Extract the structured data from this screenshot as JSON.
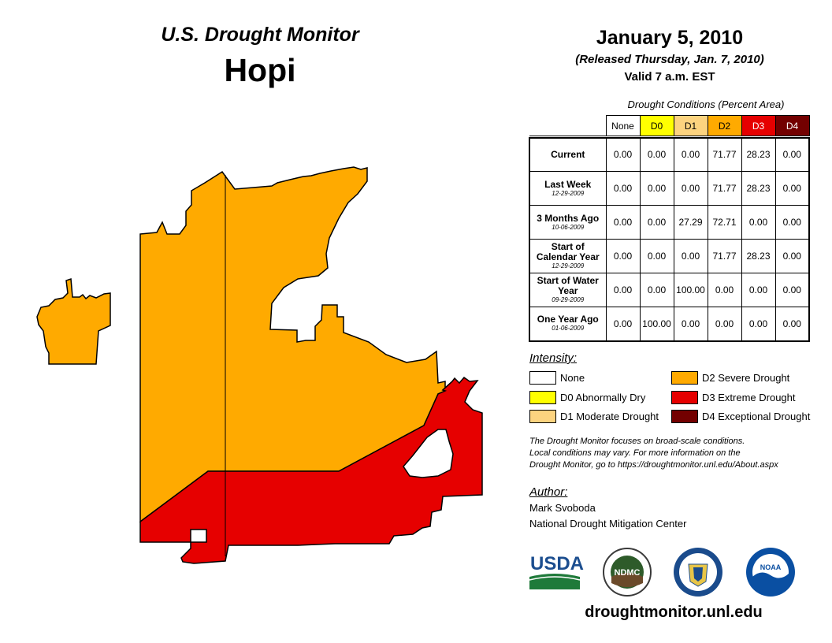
{
  "header": {
    "monitor_title": "U.S. Drought Monitor",
    "region": "Hopi",
    "date": "January 5, 2010",
    "released": "(Released Thursday, Jan. 7, 2010)",
    "valid": "Valid 7 a.m. EST"
  },
  "table": {
    "caption": "Drought Conditions (Percent Area)",
    "columns": [
      {
        "label": "None",
        "bg": "#ffffff",
        "fg": "#000000"
      },
      {
        "label": "D0",
        "bg": "#ffff00",
        "fg": "#000000"
      },
      {
        "label": "D1",
        "bg": "#fcd37f",
        "fg": "#000000"
      },
      {
        "label": "D2",
        "bg": "#ffaa00",
        "fg": "#000000"
      },
      {
        "label": "D3",
        "bg": "#e60000",
        "fg": "#ffffff"
      },
      {
        "label": "D4",
        "bg": "#730000",
        "fg": "#ffffff"
      }
    ],
    "rows": [
      {
        "label": "Current",
        "date": "",
        "values": [
          "0.00",
          "0.00",
          "0.00",
          "71.77",
          "28.23",
          "0.00"
        ]
      },
      {
        "label": "Last Week",
        "date": "12-29-2009",
        "values": [
          "0.00",
          "0.00",
          "0.00",
          "71.77",
          "28.23",
          "0.00"
        ]
      },
      {
        "label": "3 Months Ago",
        "date": "10-06-2009",
        "values": [
          "0.00",
          "0.00",
          "27.29",
          "72.71",
          "0.00",
          "0.00"
        ]
      },
      {
        "label": "Start of Calendar Year",
        "date": "12-29-2009",
        "values": [
          "0.00",
          "0.00",
          "0.00",
          "71.77",
          "28.23",
          "0.00"
        ]
      },
      {
        "label": "Start of Water Year",
        "date": "09-29-2009",
        "values": [
          "0.00",
          "0.00",
          "100.00",
          "0.00",
          "0.00",
          "0.00"
        ]
      },
      {
        "label": "One Year Ago",
        "date": "01-06-2009",
        "values": [
          "0.00",
          "100.00",
          "0.00",
          "0.00",
          "0.00",
          "0.00"
        ]
      }
    ]
  },
  "legend": {
    "title": "Intensity:",
    "items": [
      {
        "label": "None",
        "color": "#ffffff"
      },
      {
        "label": "D0 Abnormally Dry",
        "color": "#ffff00"
      },
      {
        "label": "D1 Moderate Drought",
        "color": "#fcd37f"
      },
      {
        "label": "D2 Severe Drought",
        "color": "#ffaa00"
      },
      {
        "label": "D3 Extreme Drought",
        "color": "#e60000"
      },
      {
        "label": "D4 Exceptional Drought",
        "color": "#730000"
      }
    ]
  },
  "disclaimer": {
    "line1": "The Drought Monitor focuses on broad-scale conditions.",
    "line2": "Local conditions may vary. For more information on the",
    "line3": "Drought Monitor, go to https://droughtmonitor.unl.edu/About.aspx"
  },
  "author": {
    "label": "Author:",
    "name": "Mark Svoboda",
    "org": "National Drought Mitigation Center"
  },
  "logos": {
    "usda": "USDA",
    "ndmc": "NDMC",
    "noaa": "NOAA"
  },
  "map_colors": {
    "d2": "#ffaa00",
    "d3": "#e60000"
  },
  "website": "droughtmonitor.unl.edu"
}
